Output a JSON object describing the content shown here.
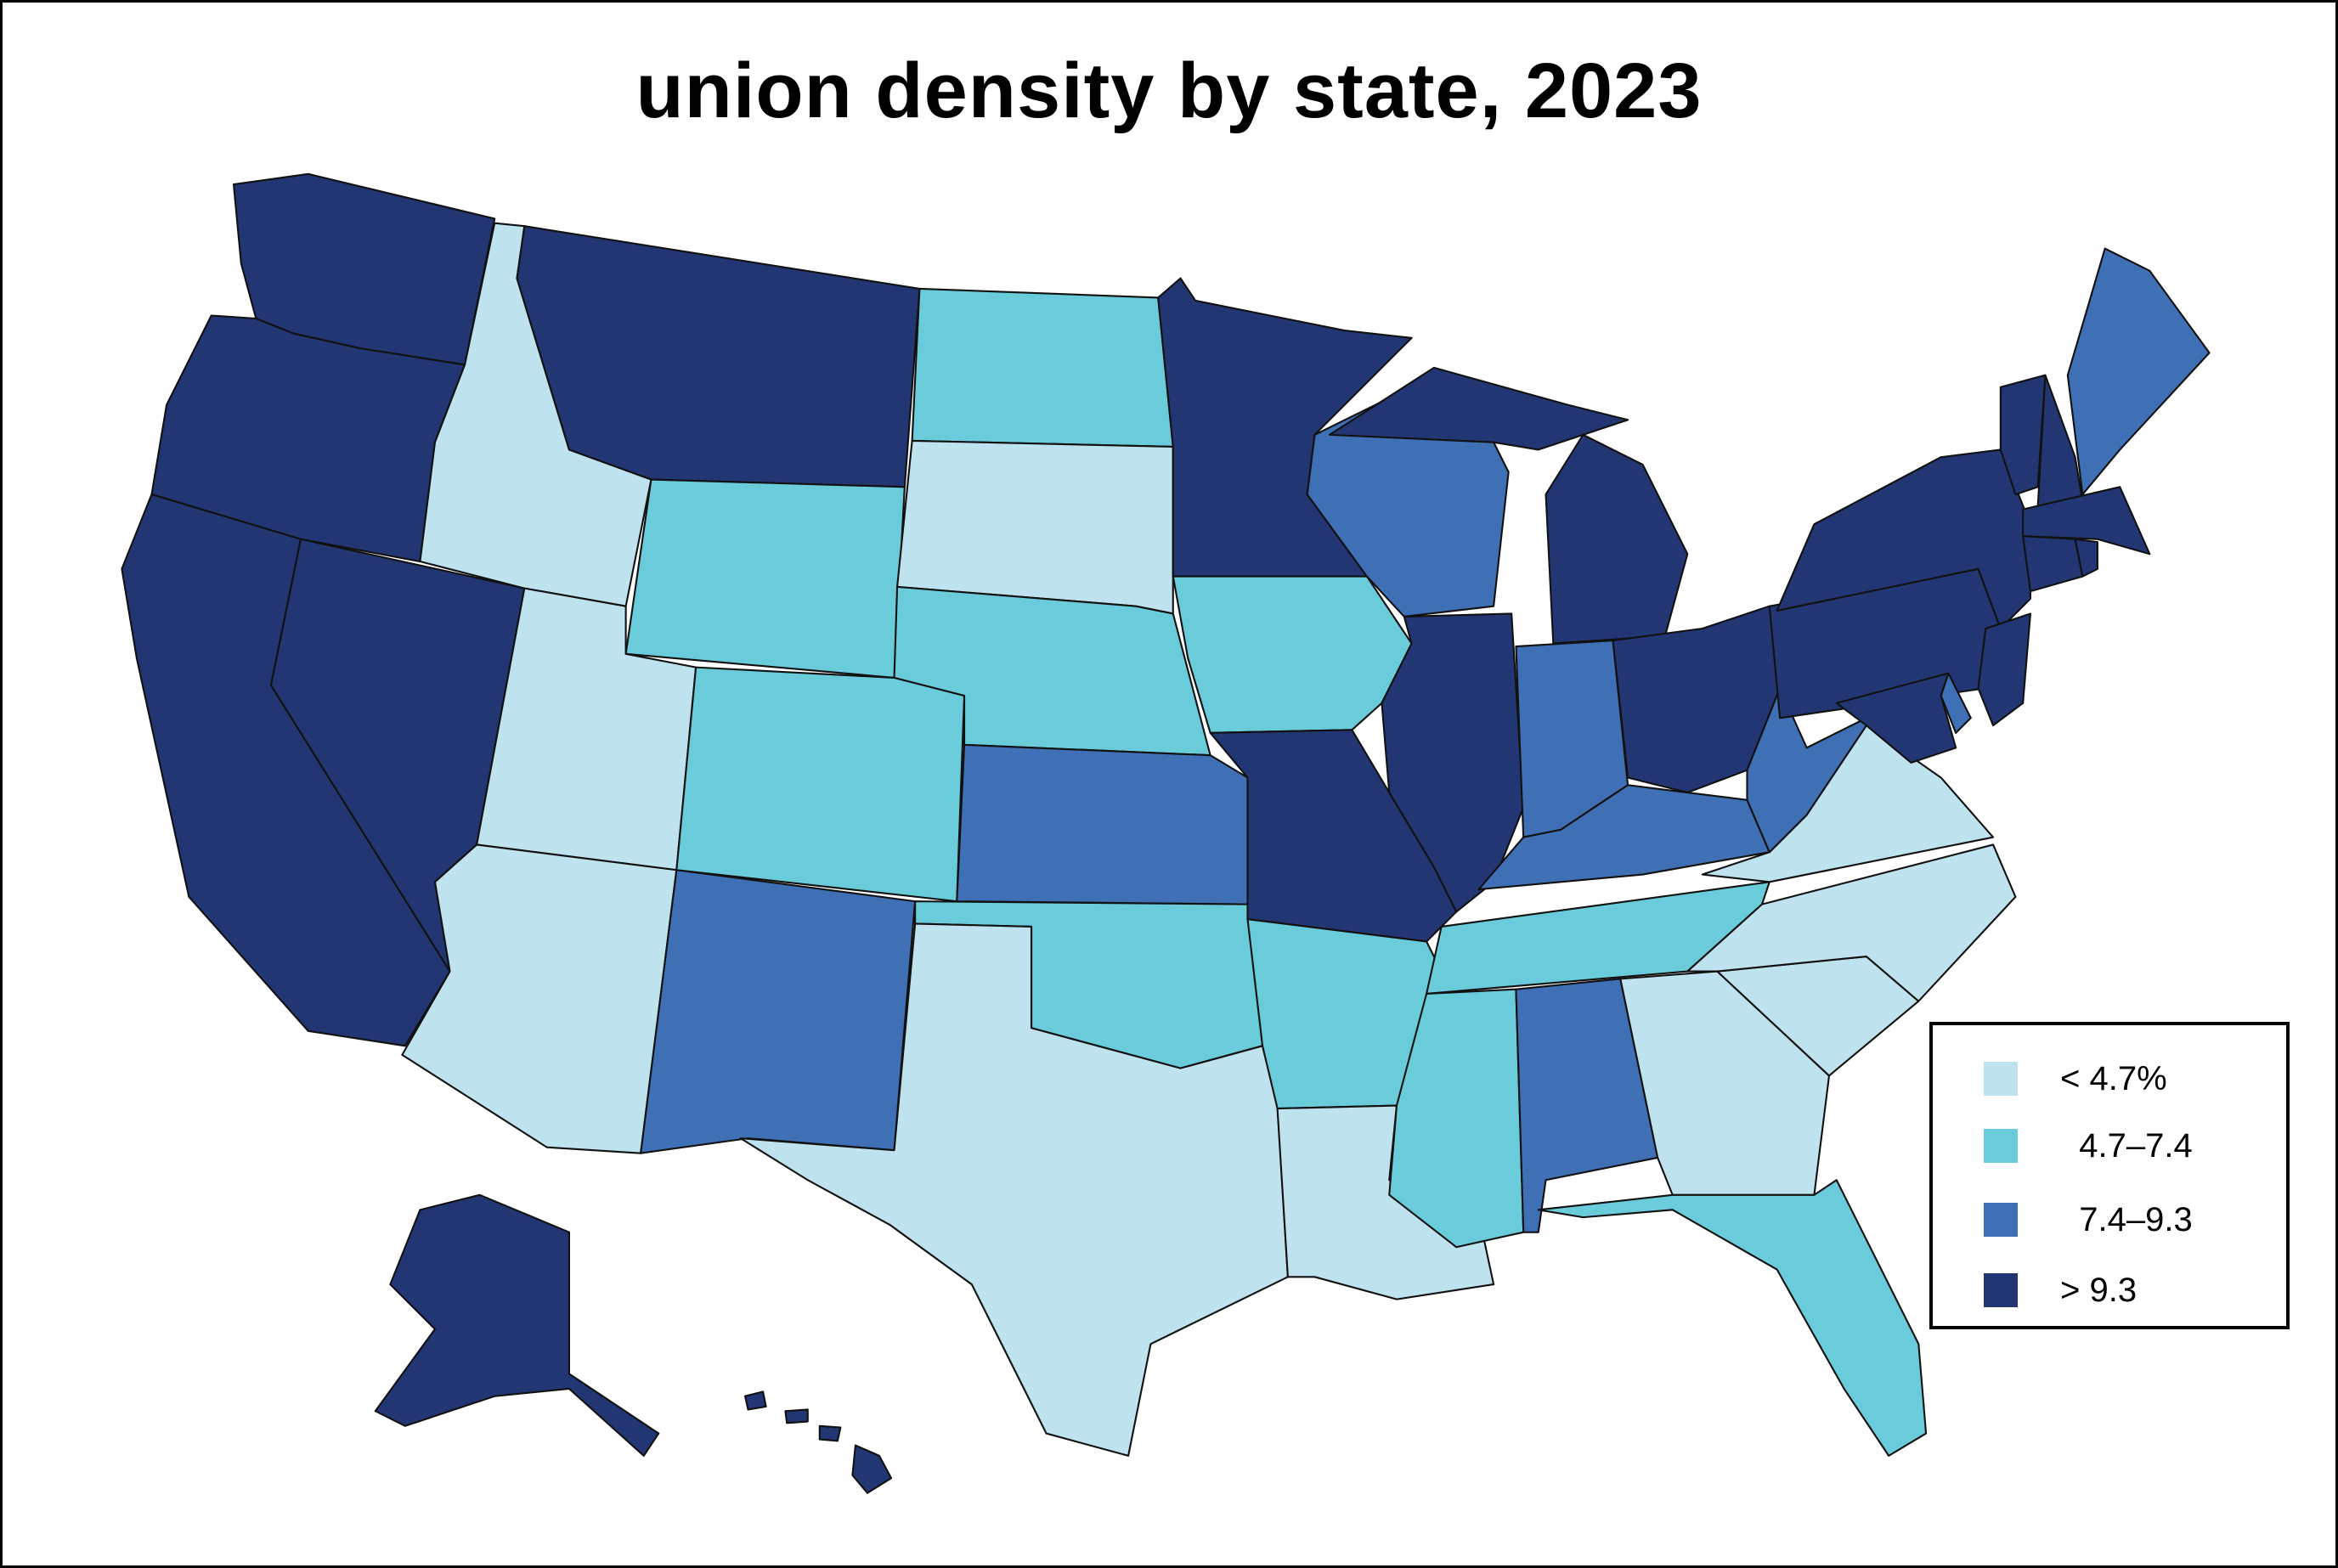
{
  "chart_data": {
    "type": "choropleth",
    "title": "union density by state, 2023",
    "legend_placement": "bottom-right",
    "bins": [
      {
        "label": "< 4.7%",
        "color": "#BEE3EE"
      },
      {
        "label": "  4.7–7.4",
        "color": "#6ACBDB"
      },
      {
        "label": "  7.4–9.3",
        "color": "#3F6FB5"
      },
      {
        "label": "> 9.3",
        "color": "#233674"
      }
    ],
    "states": {
      "WA": 3,
      "OR": 3,
      "CA": 3,
      "NV": 3,
      "MT": 3,
      "MN": 3,
      "MI": 3,
      "IL": 3,
      "MO": 3,
      "OH": 3,
      "PA": 3,
      "NY": 3,
      "NJ": 3,
      "VT": 3,
      "NH": 3,
      "MA": 3,
      "CT": 3,
      "RI": 3,
      "MD": 3,
      "AK": 3,
      "HI": 3,
      "ME": 2,
      "WI": 2,
      "IN": 2,
      "KY": 2,
      "WV": 2,
      "KS": 2,
      "NM": 2,
      "AL": 2,
      "DE": 2,
      "ND": 1,
      "WY": 1,
      "NE": 1,
      "CO": 1,
      "IA": 1,
      "OK": 1,
      "AR": 1,
      "TN": 1,
      "MS": 1,
      "FL": 1,
      "ID": 0,
      "UT": 0,
      "AZ": 0,
      "SD": 0,
      "TX": 0,
      "LA": 0,
      "GA": 0,
      "SC": 0,
      "NC": 0,
      "VA": 0
    }
  }
}
